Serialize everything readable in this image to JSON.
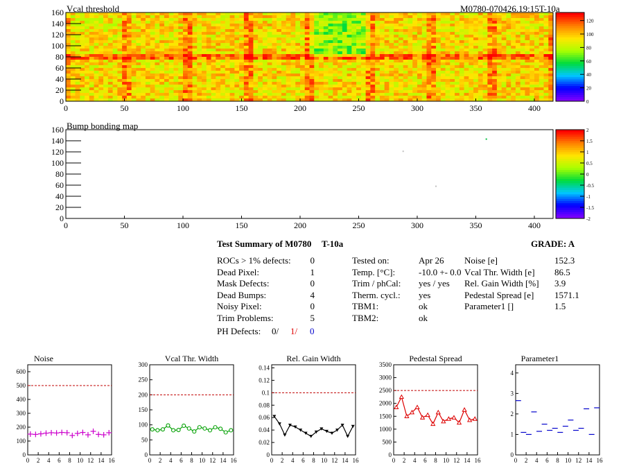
{
  "top_map": {
    "title": "Vcal threshold",
    "module_id": "M0780-070426.19:15T-10a",
    "x_ticks": [
      0,
      50,
      100,
      150,
      200,
      250,
      300,
      350,
      400
    ],
    "y_ticks": [
      0,
      20,
      40,
      60,
      80,
      100,
      120,
      140,
      160
    ],
    "x_max": 416,
    "y_max": 160,
    "z_ticks": [
      0,
      20,
      40,
      60,
      80,
      100,
      120
    ]
  },
  "bump_map": {
    "title": "Bump bonding map",
    "x_ticks": [
      0,
      50,
      100,
      150,
      200,
      250,
      300,
      350,
      400
    ],
    "y_ticks": [
      0,
      20,
      40,
      60,
      80,
      100,
      120,
      140,
      160
    ],
    "x_max": 416,
    "y_max": 160,
    "z_ticks": [
      "2",
      "1.5",
      "1",
      "0.5",
      "0",
      "-0.5",
      "-1",
      "-1.5",
      "-2"
    ],
    "points": [
      [
        359,
        143
      ],
      [
        288,
        121
      ],
      [
        316,
        58
      ]
    ]
  },
  "summary": {
    "title": "Test Summary of M0780",
    "temp_label": "T-10a",
    "grade": "GRADE:  A",
    "left_rows": [
      {
        "label": "ROCs > 1% defects:",
        "value": "0"
      },
      {
        "label": "Dead Pixel:",
        "value": "1"
      },
      {
        "label": "Mask Defects:",
        "value": "0"
      },
      {
        "label": "Dead Bumps:",
        "value": "4"
      },
      {
        "label": "Noisy Pixel:",
        "value": "0"
      },
      {
        "label": "Trim Problems:",
        "value": "5"
      }
    ],
    "ph_label": "PH Defects:",
    "ph_values": [
      "0/",
      "1/",
      "0"
    ],
    "mid_rows": [
      {
        "label": "Tested on:",
        "value": "Apr 26"
      },
      {
        "label": "Temp. [°C]:",
        "value": "-10.0 +- 0.0"
      },
      {
        "label": "Trim / phCal:",
        "value": "yes / yes"
      },
      {
        "label": "Therm. cycl.:",
        "value": "yes"
      },
      {
        "label": "TBM1:",
        "value": "ok"
      },
      {
        "label": "TBM2:",
        "value": "ok"
      }
    ],
    "right_rows": [
      {
        "label": "Noise [e]",
        "value": "152.3"
      },
      {
        "label": "Vcal Thr. Width [e]",
        "value": "86.5"
      },
      {
        "label": "Rel. Gain Width [%]",
        "value": "3.9"
      },
      {
        "label": "Pedestal Spread [e]",
        "value": "1571.1"
      },
      {
        "label": "Parameter1 []",
        "value": "1.5"
      }
    ]
  },
  "chart_data": [
    {
      "type": "scatter",
      "title": "Noise",
      "x_ticks": [
        0,
        2,
        4,
        6,
        8,
        10,
        12,
        14,
        16
      ],
      "y_ticks": [
        0,
        100,
        200,
        300,
        400,
        500,
        600
      ],
      "ylim": [
        0,
        650
      ],
      "xlim": [
        0,
        16
      ],
      "threshold": 500,
      "color": "#cc00cc",
      "marker": "plus",
      "x": [
        0.5,
        1.5,
        2.5,
        3.5,
        4.5,
        5.5,
        6.5,
        7.5,
        8.5,
        9.5,
        10.5,
        11.5,
        12.5,
        13.5,
        14.5,
        15.5
      ],
      "values": [
        150,
        148,
        152,
        157,
        160,
        158,
        162,
        160,
        140,
        155,
        162,
        145,
        170,
        148,
        145,
        160
      ]
    },
    {
      "type": "line",
      "title": "Vcal Thr. Width",
      "x_ticks": [
        0,
        2,
        4,
        6,
        8,
        10,
        12,
        14,
        16
      ],
      "y_ticks": [
        0,
        50,
        100,
        150,
        200,
        250,
        300
      ],
      "ylim": [
        0,
        300
      ],
      "xlim": [
        0,
        16
      ],
      "threshold": 200,
      "color": "#00a000",
      "marker": "circle",
      "x": [
        0.5,
        1.5,
        2.5,
        3.5,
        4.5,
        5.5,
        6.5,
        7.5,
        8.5,
        9.5,
        10.5,
        11.5,
        12.5,
        13.5,
        14.5,
        15.5
      ],
      "values": [
        85,
        82,
        85,
        98,
        82,
        83,
        97,
        88,
        78,
        92,
        88,
        82,
        92,
        87,
        75,
        82
      ]
    },
    {
      "type": "line",
      "title": "Rel. Gain Width",
      "x_ticks": [
        0,
        2,
        4,
        6,
        8,
        10,
        12,
        14,
        16
      ],
      "y_ticks": [
        "0",
        "0.02",
        "0.04",
        "0.06",
        "0.08",
        "0.1",
        "0.12",
        "0.14"
      ],
      "ylim": [
        0,
        0.145
      ],
      "xlim": [
        0,
        16
      ],
      "threshold": 0.1,
      "color": "#000000",
      "marker": "triangle-down",
      "x": [
        0.5,
        1.5,
        2.5,
        3.5,
        4.5,
        5.5,
        6.5,
        7.5,
        8.5,
        9.5,
        10.5,
        11.5,
        12.5,
        13.5,
        14.5,
        15.5
      ],
      "values": [
        0.062,
        0.05,
        0.032,
        0.048,
        0.045,
        0.04,
        0.035,
        0.03,
        0.037,
        0.042,
        0.038,
        0.035,
        0.04,
        0.048,
        0.03,
        0.046
      ]
    },
    {
      "type": "line",
      "title": "Pedestal Spread",
      "x_ticks": [
        0,
        2,
        4,
        6,
        8,
        10,
        12,
        14,
        16
      ],
      "y_ticks": [
        0,
        500,
        1000,
        1500,
        2000,
        2500,
        3000,
        3500
      ],
      "ylim": [
        0,
        3500
      ],
      "xlim": [
        0,
        16
      ],
      "threshold": 2500,
      "color": "#dd0000",
      "marker": "triangle-up",
      "x": [
        0.5,
        1.5,
        2.5,
        3.5,
        4.5,
        5.5,
        6.5,
        7.5,
        8.5,
        9.5,
        10.5,
        11.5,
        12.5,
        13.5,
        14.5,
        15.5
      ],
      "values": [
        1850,
        2250,
        1500,
        1650,
        1850,
        1450,
        1550,
        1200,
        1650,
        1300,
        1400,
        1450,
        1250,
        1750,
        1350,
        1400
      ]
    },
    {
      "type": "scatter",
      "title": "Parameter1",
      "x_ticks": [
        0,
        2,
        4,
        6,
        8,
        10,
        12,
        14,
        16
      ],
      "y_ticks": [
        0,
        1,
        2,
        3,
        4
      ],
      "ylim": [
        0,
        4.4
      ],
      "xlim": [
        0,
        16
      ],
      "color": "#0000cc",
      "marker": "plus",
      "x": [
        0.5,
        1.5,
        2.5,
        3.5,
        4.5,
        5.5,
        6.5,
        7.5,
        8.5,
        9.5,
        10.5,
        11.5,
        12.5,
        13.5,
        14.5,
        15.5
      ],
      "values": [
        2.65,
        1.1,
        1.0,
        2.1,
        1.15,
        1.5,
        1.2,
        1.3,
        1.1,
        1.4,
        1.7,
        1.2,
        1.3,
        2.25,
        1.0,
        2.3
      ]
    }
  ]
}
